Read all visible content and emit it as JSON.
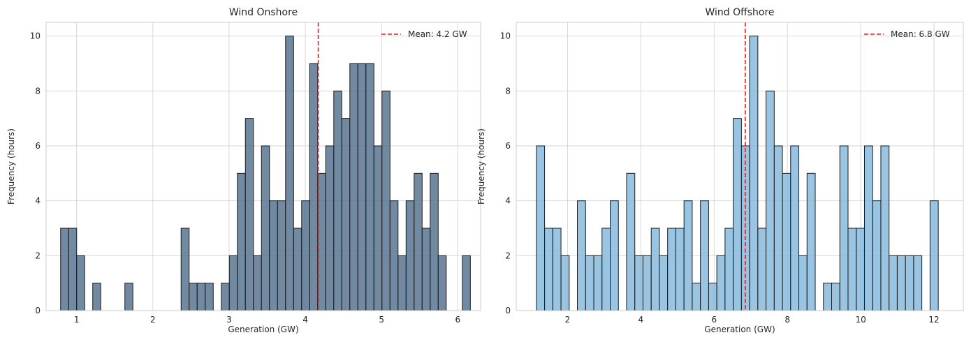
{
  "chart_data": [
    {
      "type": "bar",
      "subtype": "histogram",
      "title": "Wind Onshore",
      "xlabel": "Generation (GW)",
      "ylabel": "Frequency (hours)",
      "xlim": [
        0.6,
        6.3
      ],
      "ylim": [
        0,
        10.5
      ],
      "xticks": [
        1,
        2,
        3,
        4,
        5,
        6
      ],
      "yticks": [
        0,
        2,
        4,
        6,
        8,
        10
      ],
      "grid": true,
      "legend_position": "top-right",
      "bar_color": "#4f6d8a",
      "edge_color": "#1a1a1a",
      "bin_start": 0.79,
      "bin_width": 0.1054,
      "counts": [
        3,
        3,
        2,
        0,
        1,
        0,
        0,
        0,
        1,
        0,
        0,
        0,
        0,
        0,
        0,
        3,
        1,
        1,
        1,
        0,
        1,
        2,
        5,
        7,
        2,
        6,
        4,
        4,
        10,
        3,
        4,
        9,
        5,
        6,
        8,
        7,
        9,
        9,
        9,
        6,
        8,
        4,
        2,
        4,
        5,
        3,
        5,
        2,
        0,
        0,
        2
      ],
      "mean": {
        "value": 4.17,
        "label": "Mean: 4.2 GW",
        "color": "#e31a1c"
      }
    },
    {
      "type": "bar",
      "subtype": "histogram",
      "title": "Wind Offshore",
      "xlabel": "Generation (GW)",
      "ylabel": "Frequency (hours)",
      "xlim": [
        0.6,
        12.8
      ],
      "ylim": [
        0,
        10.5
      ],
      "xticks": [
        2,
        4,
        6,
        8,
        10,
        12
      ],
      "yticks": [
        0,
        2,
        4,
        6,
        8,
        10
      ],
      "grid": true,
      "legend_position": "top-right",
      "bar_color": "#7fb6db",
      "edge_color": "#1a1a1a",
      "bin_start": 1.15,
      "bin_width": 0.2238,
      "counts": [
        6,
        3,
        3,
        2,
        0,
        4,
        2,
        2,
        3,
        4,
        0,
        5,
        2,
        2,
        3,
        2,
        3,
        3,
        4,
        1,
        4,
        1,
        2,
        3,
        7,
        6,
        10,
        3,
        8,
        6,
        5,
        6,
        2,
        5,
        0,
        1,
        1,
        6,
        3,
        3,
        6,
        4,
        6,
        2,
        2,
        2,
        2,
        0,
        4
      ],
      "mean": {
        "value": 6.85,
        "label": "Mean: 6.8 GW",
        "color": "#e31a1c"
      }
    }
  ]
}
